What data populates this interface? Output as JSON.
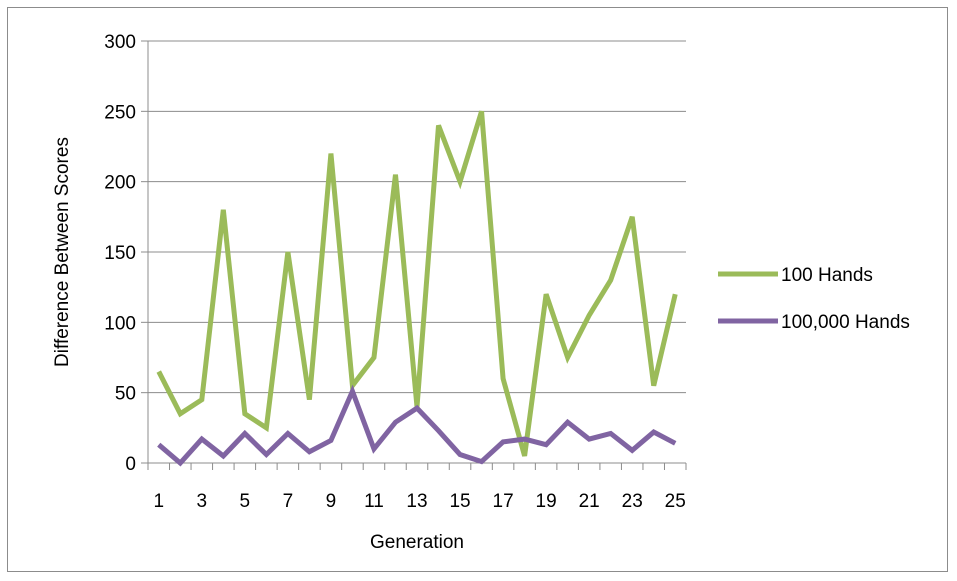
{
  "chart_data": {
    "type": "line",
    "xlabel": "Generation",
    "ylabel": "Difference Between Scores",
    "ylim": [
      0,
      300
    ],
    "yticks": [
      0,
      50,
      100,
      150,
      200,
      250,
      300
    ],
    "x": [
      1,
      2,
      3,
      4,
      5,
      6,
      7,
      8,
      9,
      10,
      11,
      12,
      13,
      14,
      15,
      16,
      17,
      18,
      19,
      20,
      21,
      22,
      23,
      24,
      25
    ],
    "xtick_labels": [
      "1",
      "3",
      "5",
      "7",
      "9",
      "11",
      "13",
      "15",
      "17",
      "19",
      "21",
      "23",
      "25"
    ],
    "grid": "horizontal",
    "legend_position": "right",
    "series": [
      {
        "name": "100 Hands",
        "color": "#9bbb59",
        "values": [
          65,
          35,
          45,
          180,
          35,
          25,
          150,
          45,
          220,
          55,
          75,
          205,
          40,
          240,
          200,
          250,
          60,
          5,
          120,
          75,
          105,
          130,
          175,
          55,
          120
        ]
      },
      {
        "name": "100,000 Hands",
        "color": "#8064a2",
        "values": [
          13,
          0,
          17,
          5,
          21,
          6,
          21,
          8,
          16,
          51,
          10,
          29,
          39,
          23,
          6,
          1,
          15,
          17,
          13,
          29,
          17,
          21,
          9,
          22,
          14
        ]
      }
    ]
  }
}
